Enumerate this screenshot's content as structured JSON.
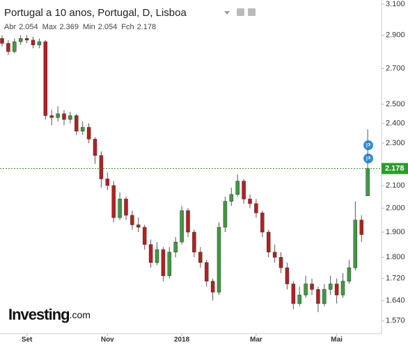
{
  "chart_data": {
    "type": "candlestick",
    "title": "Portugal a 10 anos, Portugal, D, Lisboa",
    "ohlc_labels": [
      "Abr",
      "Max",
      "Min",
      "Fch"
    ],
    "logo": {
      "main": "Investing",
      "suffix": ".com"
    },
    "up_color": "#3e9b3e",
    "down_color": "#b52020",
    "last_price_color": "#2a9d2a",
    "log_scale": true,
    "ylim": [
      1.528,
      3.128
    ],
    "yticks": [
      {
        "value": 1.57,
        "label": "1.570"
      },
      {
        "value": 1.64,
        "label": "1.640"
      },
      {
        "value": 1.72,
        "label": "1.720"
      },
      {
        "value": 1.8,
        "label": "1.800"
      },
      {
        "value": 1.9,
        "label": "1.900"
      },
      {
        "value": 2.0,
        "label": "2.000"
      },
      {
        "value": 2.1,
        "label": "2.100"
      },
      {
        "value": 2.3,
        "label": "2.300"
      },
      {
        "value": 2.4,
        "label": "2.400"
      },
      {
        "value": 2.5,
        "label": "2.500"
      },
      {
        "value": 2.7,
        "label": "2.700"
      },
      {
        "value": 2.9,
        "label": "2.900"
      },
      {
        "value": 3.1,
        "label": "3.100"
      }
    ],
    "categories": [
      null,
      null,
      null,
      null,
      "Set",
      null,
      null,
      null,
      null,
      null,
      null,
      null,
      null,
      null,
      null,
      null,
      null,
      "Nov",
      null,
      null,
      null,
      null,
      null,
      null,
      null,
      null,
      null,
      null,
      null,
      "2018",
      null,
      null,
      null,
      null,
      null,
      null,
      null,
      null,
      null,
      null,
      null,
      "Mar",
      null,
      null,
      null,
      null,
      null,
      null,
      null,
      null,
      null,
      null,
      null,
      null,
      "Mai",
      null,
      null,
      null,
      null,
      null
    ],
    "open": [
      2.88,
      2.85,
      2.8,
      2.86,
      2.88,
      2.87,
      2.84,
      2.86,
      2.44,
      2.43,
      2.45,
      2.42,
      2.44,
      2.36,
      2.38,
      2.32,
      2.24,
      2.13,
      2.1,
      1.96,
      2.04,
      1.97,
      1.93,
      1.92,
      1.85,
      1.78,
      1.83,
      1.73,
      1.82,
      1.86,
      1.99,
      1.9,
      1.82,
      1.78,
      1.71,
      1.67,
      1.92,
      2.03,
      2.06,
      2.12,
      2.04,
      2.02,
      1.98,
      1.9,
      1.82,
      1.8,
      1.76,
      1.7,
      1.63,
      1.66,
      1.7,
      1.68,
      1.63,
      1.68,
      1.7,
      1.66,
      1.71,
      1.76,
      1.95,
      2.054
    ],
    "high": [
      2.9,
      2.87,
      2.88,
      2.9,
      2.9,
      2.89,
      2.88,
      2.87,
      2.47,
      2.49,
      2.47,
      2.46,
      2.45,
      2.41,
      2.4,
      2.33,
      2.26,
      2.16,
      2.12,
      2.07,
      2.05,
      1.99,
      1.96,
      1.93,
      1.87,
      1.86,
      1.84,
      1.84,
      1.88,
      2.01,
      2.0,
      1.91,
      1.84,
      1.79,
      1.72,
      1.94,
      2.05,
      2.09,
      2.15,
      2.13,
      2.06,
      2.04,
      1.99,
      1.91,
      1.85,
      1.82,
      1.78,
      1.71,
      1.69,
      1.73,
      1.72,
      1.69,
      1.7,
      1.73,
      1.72,
      1.74,
      1.79,
      2.03,
      1.97,
      2.369
    ],
    "low": [
      2.83,
      2.78,
      2.79,
      2.84,
      2.85,
      2.82,
      2.82,
      2.42,
      2.39,
      2.41,
      2.39,
      2.4,
      2.34,
      2.34,
      2.3,
      2.2,
      2.09,
      2.08,
      1.94,
      1.95,
      1.95,
      1.91,
      1.9,
      1.83,
      1.76,
      1.77,
      1.71,
      1.72,
      1.8,
      1.85,
      1.88,
      1.8,
      1.76,
      1.69,
      1.64,
      1.66,
      1.9,
      2.01,
      2.05,
      2.02,
      2.0,
      1.96,
      1.88,
      1.8,
      1.78,
      1.74,
      1.68,
      1.61,
      1.62,
      1.65,
      1.66,
      1.6,
      1.62,
      1.66,
      1.63,
      1.65,
      1.7,
      1.75,
      1.86,
      2.054
    ],
    "close": [
      2.85,
      2.8,
      2.86,
      2.88,
      2.87,
      2.84,
      2.86,
      2.44,
      2.43,
      2.45,
      2.42,
      2.44,
      2.36,
      2.38,
      2.32,
      2.24,
      2.13,
      2.1,
      1.96,
      2.04,
      1.97,
      1.93,
      1.92,
      1.85,
      1.78,
      1.83,
      1.73,
      1.82,
      1.86,
      1.99,
      1.9,
      1.82,
      1.78,
      1.71,
      1.67,
      1.92,
      2.03,
      2.06,
      2.12,
      2.04,
      2.02,
      1.98,
      1.9,
      1.82,
      1.8,
      1.76,
      1.7,
      1.63,
      1.66,
      1.7,
      1.68,
      1.63,
      1.68,
      1.7,
      1.66,
      1.71,
      1.76,
      1.95,
      1.89,
      2.178
    ]
  }
}
